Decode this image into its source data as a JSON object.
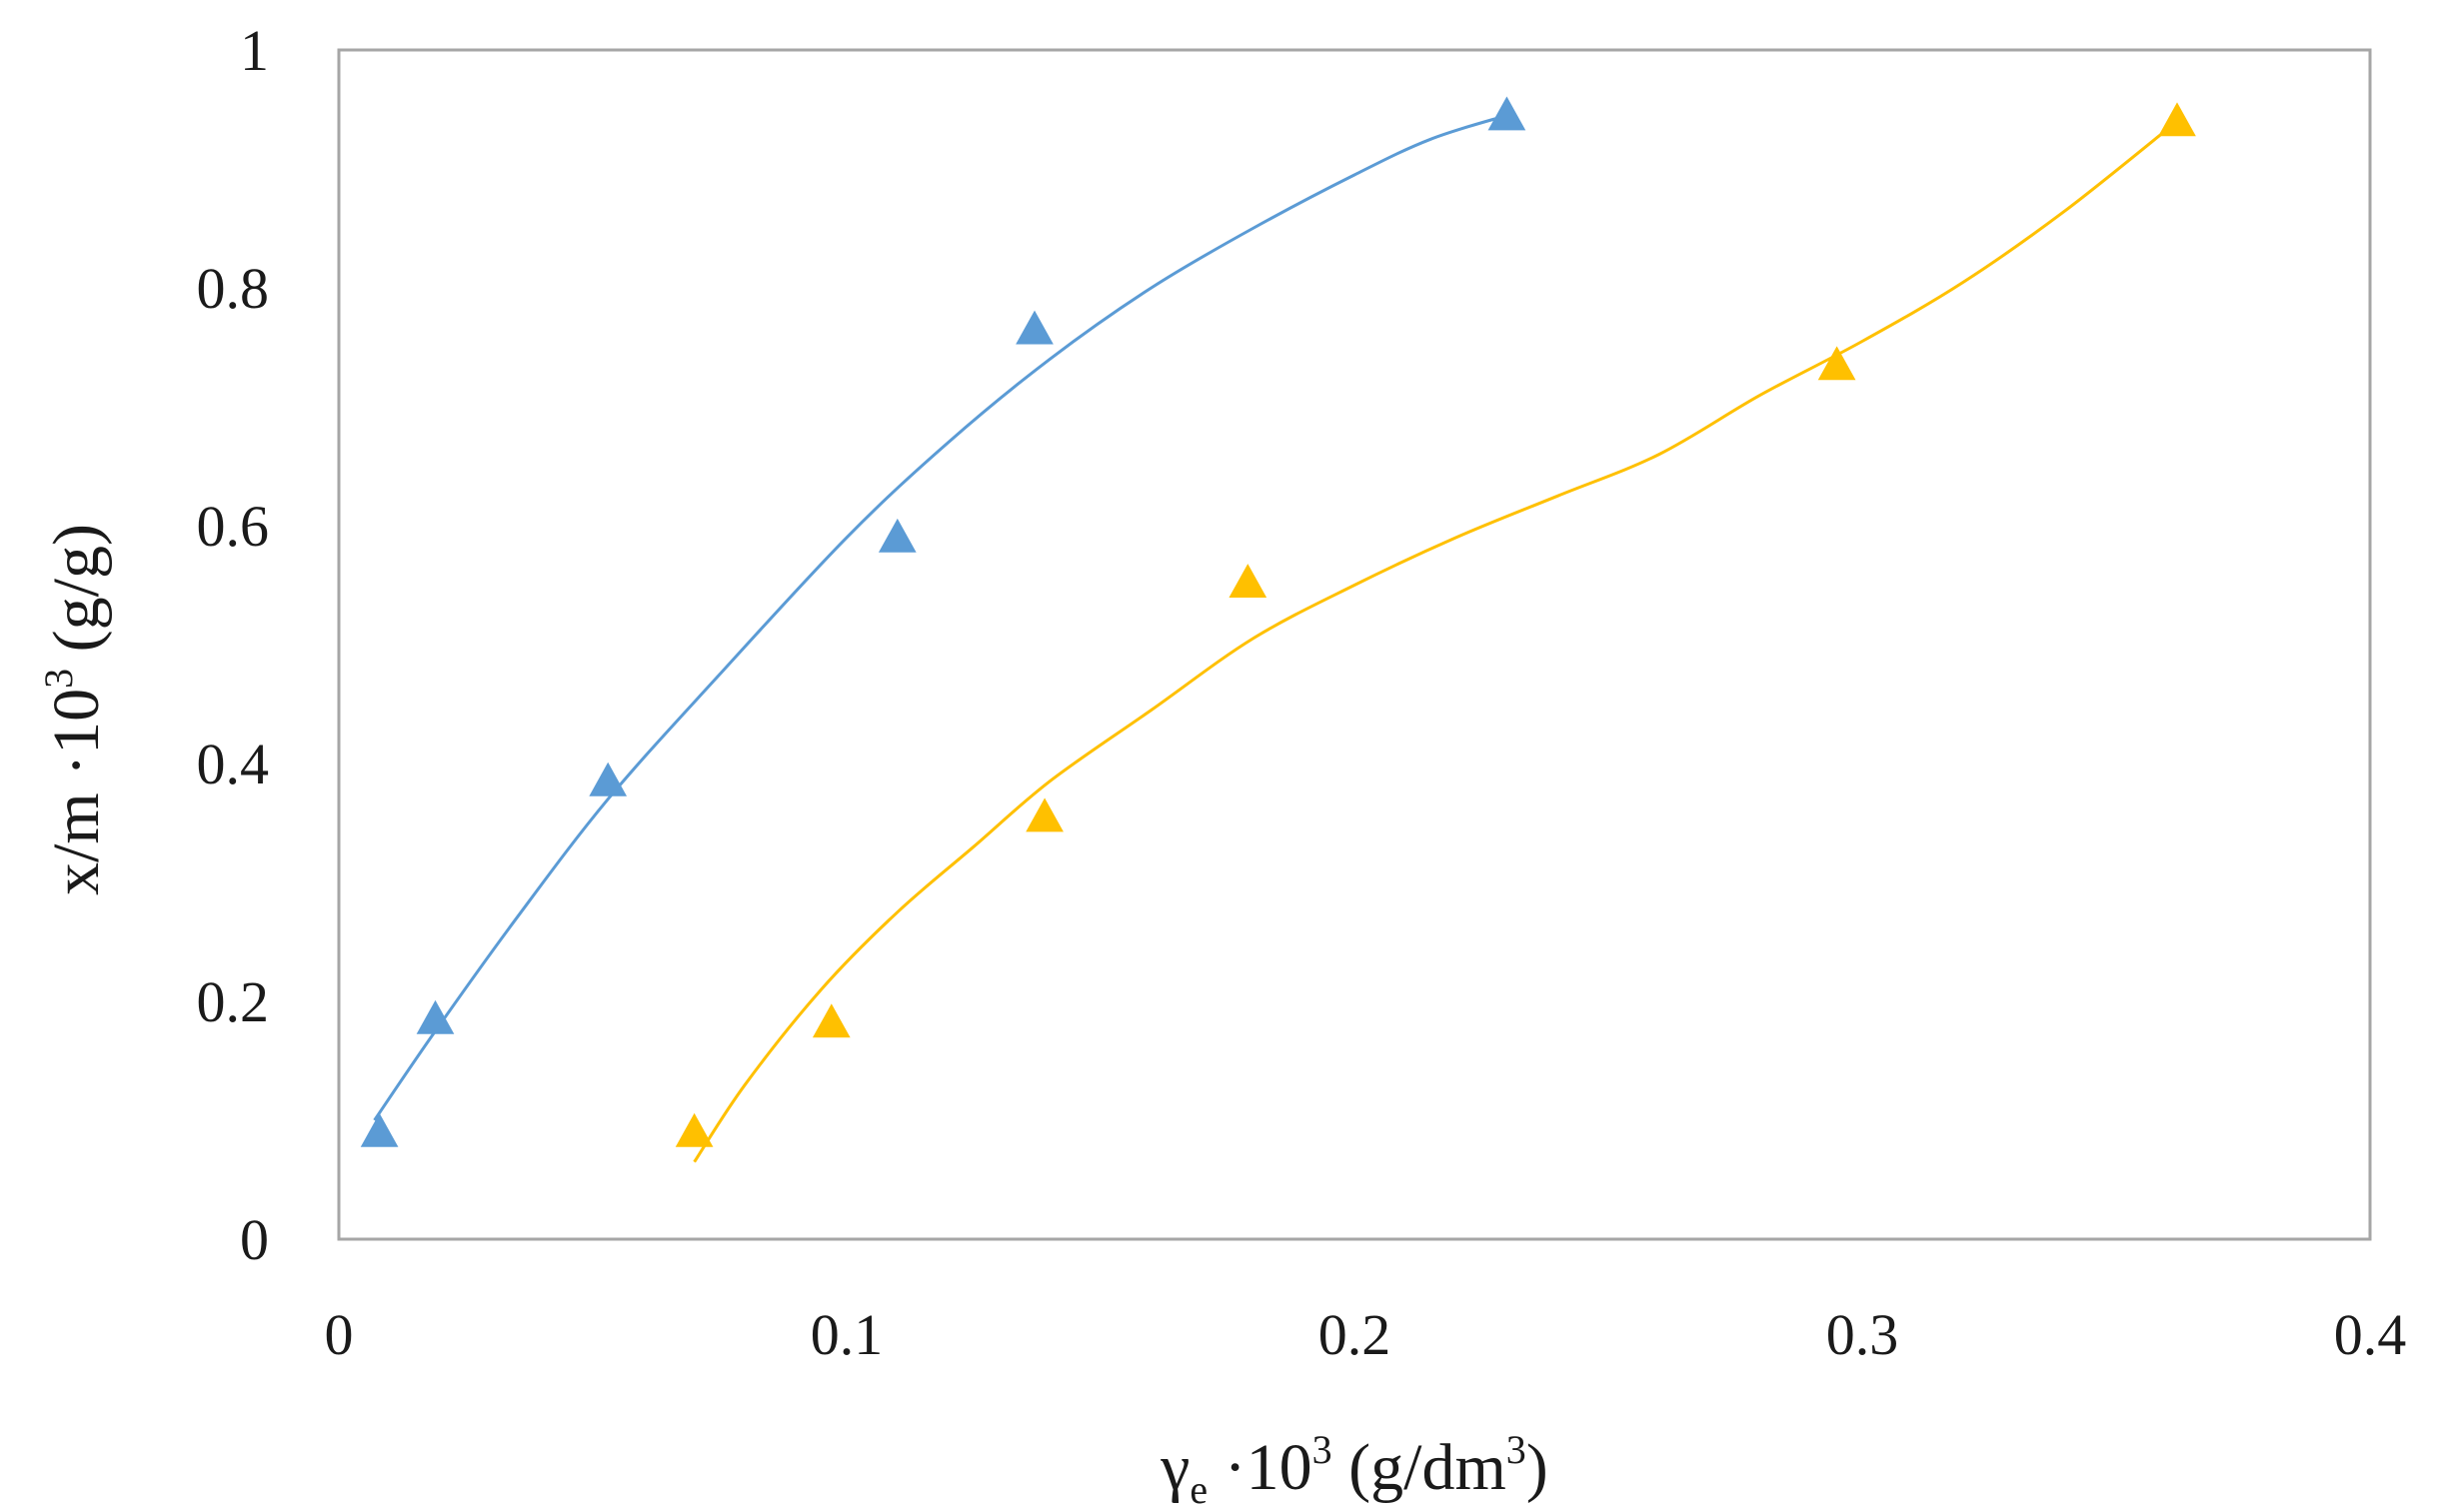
{
  "chart_data": {
    "type": "scatter",
    "xlabel": "γe ·10³ (g/dm³)",
    "ylabel": "x/m ·10³ (g/g)",
    "xlabel_parts": {
      "symbol": "γ",
      "sub": "e",
      "mid": " ·10",
      "sup1": "3",
      "unit_open": " (g/dm",
      "sup2": "3",
      "unit_close": ")"
    },
    "ylabel_parts": {
      "main": "x/m ·10",
      "sup": "3",
      "unit": " (g/g)"
    },
    "xlim": [
      0,
      0.4
    ],
    "ylim": [
      0,
      1
    ],
    "x_ticks": [
      0,
      0.1,
      0.2,
      0.3,
      0.4
    ],
    "x_tick_labels": [
      "0",
      "0.1",
      "0.2",
      "0.3",
      "0.4"
    ],
    "y_ticks": [
      0,
      0.2,
      0.4,
      0.6,
      0.8,
      1
    ],
    "y_tick_labels": [
      "0",
      "0.2",
      "0.4",
      "0.6",
      "0.8",
      "1"
    ],
    "grid": false,
    "legend": "none",
    "series": [
      {
        "color": "#5B9BD5",
        "marker": "triangle",
        "points": [
          {
            "x": 0.008,
            "y": 0.09
          },
          {
            "x": 0.019,
            "y": 0.185
          },
          {
            "x": 0.053,
            "y": 0.385
          },
          {
            "x": 0.11,
            "y": 0.59
          },
          {
            "x": 0.137,
            "y": 0.765
          },
          {
            "x": 0.23,
            "y": 0.945
          }
        ],
        "trend": [
          {
            "x": 0.007,
            "y": 0.1
          },
          {
            "x": 0.019,
            "y": 0.175
          },
          {
            "x": 0.035,
            "y": 0.27
          },
          {
            "x": 0.053,
            "y": 0.37
          },
          {
            "x": 0.075,
            "y": 0.475
          },
          {
            "x": 0.1,
            "y": 0.59
          },
          {
            "x": 0.12,
            "y": 0.67
          },
          {
            "x": 0.14,
            "y": 0.74
          },
          {
            "x": 0.16,
            "y": 0.8
          },
          {
            "x": 0.18,
            "y": 0.85
          },
          {
            "x": 0.2,
            "y": 0.895
          },
          {
            "x": 0.215,
            "y": 0.925
          },
          {
            "x": 0.23,
            "y": 0.945
          }
        ]
      },
      {
        "color": "#FFC000",
        "marker": "triangle",
        "points": [
          {
            "x": 0.07,
            "y": 0.09
          },
          {
            "x": 0.097,
            "y": 0.182
          },
          {
            "x": 0.139,
            "y": 0.355
          },
          {
            "x": 0.179,
            "y": 0.552
          },
          {
            "x": 0.295,
            "y": 0.735
          },
          {
            "x": 0.362,
            "y": 0.94
          }
        ],
        "trend": [
          {
            "x": 0.07,
            "y": 0.065
          },
          {
            "x": 0.08,
            "y": 0.13
          },
          {
            "x": 0.095,
            "y": 0.21
          },
          {
            "x": 0.11,
            "y": 0.275
          },
          {
            "x": 0.125,
            "y": 0.33
          },
          {
            "x": 0.14,
            "y": 0.385
          },
          {
            "x": 0.16,
            "y": 0.445
          },
          {
            "x": 0.18,
            "y": 0.505
          },
          {
            "x": 0.2,
            "y": 0.55
          },
          {
            "x": 0.22,
            "y": 0.59
          },
          {
            "x": 0.24,
            "y": 0.625
          },
          {
            "x": 0.26,
            "y": 0.66
          },
          {
            "x": 0.28,
            "y": 0.71
          },
          {
            "x": 0.3,
            "y": 0.755
          },
          {
            "x": 0.32,
            "y": 0.805
          },
          {
            "x": 0.34,
            "y": 0.865
          },
          {
            "x": 0.362,
            "y": 0.94
          }
        ]
      }
    ]
  }
}
